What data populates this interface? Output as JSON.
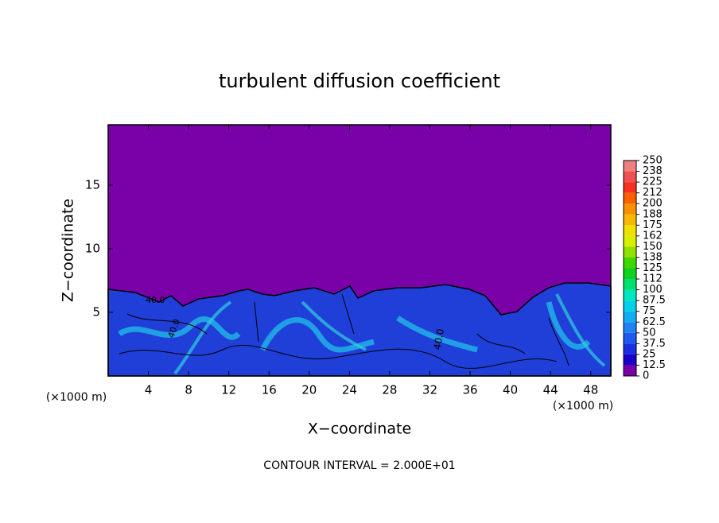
{
  "chart_data": {
    "type": "contour",
    "title": "turbulent diffusion coefficient",
    "x_label": "X−coordinate",
    "y_label": "Z−coordinate",
    "x_unit_label": "(×1000 m)",
    "y_unit_label": "(×1000 m)",
    "footer": "CONTOUR INTERVAL = 2.000E+01",
    "contour_labels": [
      "40.0",
      "40.0",
      "40.0"
    ],
    "xlim": [
      0,
      50
    ],
    "xticks": [
      4,
      8,
      12,
      16,
      20,
      24,
      28,
      32,
      36,
      40,
      44,
      48
    ],
    "ylim": [
      0,
      19.75
    ],
    "yticks": [
      5,
      10,
      15
    ],
    "colorbar": {
      "levels": [
        0,
        12.5,
        25,
        37.5,
        50,
        62.5,
        75,
        87.5,
        100,
        {
          "value": 112.5,
          "label": "112"
        },
        125,
        {
          "value": 137.5,
          "label": "138"
        },
        150,
        {
          "value": 162.5,
          "label": "162"
        },
        175,
        {
          "value": 187.5,
          "label": "188"
        },
        200,
        {
          "value": 212.5,
          "label": "212"
        },
        225,
        {
          "value": 237.5,
          "label": "238"
        },
        250
      ],
      "colors": [
        "#7a00a8",
        "#1a00c8",
        "#1c2ee0",
        "#1e5af0",
        "#1e82f5",
        "#10aef0",
        "#00d2e8",
        "#00e8c0",
        "#00e070",
        "#10d020",
        "#40d800",
        "#90e000",
        "#d8f000",
        "#f0e000",
        "#f8b800",
        "#f89000",
        "#f86000",
        "#f83020",
        "#f05050",
        "#f08080"
      ]
    }
  }
}
